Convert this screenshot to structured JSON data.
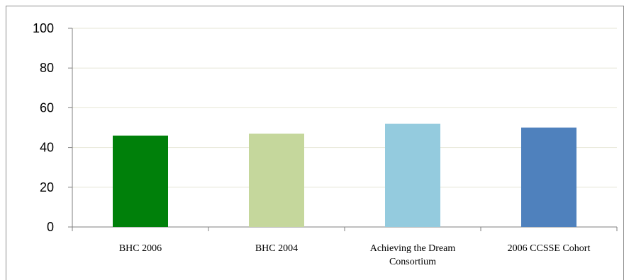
{
  "chart_data": {
    "type": "bar",
    "categories": [
      [
        "BHC 2006"
      ],
      [
        "BHC 2004"
      ],
      [
        "Achieving the Dream",
        "Consortium"
      ],
      [
        "2006 CCSSE Cohort"
      ]
    ],
    "values": [
      46,
      47,
      52,
      50
    ],
    "colors": [
      "#00800a",
      "#c5d79c",
      "#94cbde",
      "#4f81bd"
    ],
    "ylim": [
      0,
      100
    ],
    "yticks": [
      0,
      20,
      40,
      60,
      80,
      100
    ],
    "grid": true,
    "legend": "none",
    "title": "",
    "xlabel": "",
    "ylabel": ""
  },
  "colors": {
    "gridline": "#e6e6d6",
    "axis": "#7f7f7f"
  }
}
